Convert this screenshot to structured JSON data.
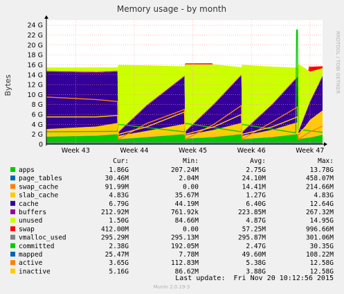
{
  "chart_data": {
    "type": "area",
    "title": "Memory usage - by month",
    "ylabel": "Bytes",
    "watermark": "RRDTOOL / TOBI OETIKER",
    "ylim": [
      0,
      25
    ],
    "yticks": [
      "0",
      "2 G",
      "4 G",
      "6 G",
      "8 G",
      "10 G",
      "12 G",
      "14 G",
      "16 G",
      "18 G",
      "20 G",
      "22 G",
      "24 G"
    ],
    "xticks": [
      "Week 43",
      "Week 44",
      "Week 45",
      "Week 46",
      "Week 47"
    ],
    "x_range_days": [
      0,
      33
    ],
    "week_positions_days": [
      3.5,
      10.5,
      17.5,
      24.5,
      31.5
    ],
    "series_stack": [
      {
        "name": "apps",
        "color": "#00cc00",
        "x": [
          0,
          6,
          8.5,
          8.6,
          12,
          16.5,
          16.6,
          20,
          23.3,
          23.4,
          27,
          30,
          30.1,
          31.5,
          33
        ],
        "values": [
          1.5,
          1.7,
          2.0,
          1.0,
          1.4,
          2.0,
          1.1,
          1.4,
          2.0,
          1.0,
          1.4,
          2.0,
          1.0,
          1.3,
          1.86
        ]
      },
      {
        "name": "page_tables",
        "color": "#0066b3",
        "x": [
          0,
          33
        ],
        "values": [
          0.03,
          0.03
        ]
      },
      {
        "name": "swap_cache",
        "color": "#ff8000",
        "x": [
          0,
          33
        ],
        "values": [
          0.03,
          0.09
        ]
      },
      {
        "name": "slab_cache",
        "color": "#ffcc00",
        "x": [
          0,
          6,
          8.5,
          8.6,
          12,
          16.5,
          16.6,
          20,
          23.3,
          23.4,
          27,
          30,
          30.1,
          31.5,
          33
        ],
        "values": [
          1.5,
          1.8,
          2.2,
          0.6,
          1.2,
          2.0,
          0.6,
          1.4,
          2.2,
          0.6,
          1.4,
          2.3,
          0.6,
          3.5,
          4.83
        ]
      },
      {
        "name": "cache",
        "color": "#330099",
        "x": [
          0,
          6,
          8.5,
          8.6,
          12,
          16.5,
          16.6,
          20,
          23.3,
          23.4,
          27,
          30,
          30.1,
          31.5,
          33
        ],
        "values": [
          11.5,
          10.8,
          10.3,
          0.6,
          5.0,
          9.5,
          0.6,
          5.0,
          9.5,
          0.6,
          5.0,
          9.0,
          0.6,
          3.5,
          6.79
        ]
      },
      {
        "name": "buffers",
        "color": "#990099",
        "x": [
          0,
          33
        ],
        "values": [
          0.2,
          0.21
        ]
      },
      {
        "name": "unused",
        "color": "#ccff00",
        "x": [
          0,
          6,
          8.5,
          8.6,
          12,
          16.5,
          16.6,
          20,
          23.3,
          23.4,
          27,
          30,
          30.1,
          31.5,
          33
        ],
        "values": [
          0.7,
          0.9,
          0.7,
          13.5,
          8.0,
          1.9,
          13.5,
          8.0,
          1.5,
          13.5,
          7.5,
          1.8,
          13.7,
          6.0,
          1.5
        ]
      },
      {
        "name": "swap",
        "color": "#ff0000",
        "x": [
          0,
          16.5,
          16.6,
          19.8,
          19.9,
          31.3,
          31.4,
          33
        ],
        "values": [
          0,
          0,
          0.2,
          0.2,
          0,
          0,
          1.0,
          0.4
        ]
      }
    ],
    "series_lines": [
      {
        "name": "vmalloc_used",
        "color": "#808080",
        "x": [
          0,
          33
        ],
        "values": [
          0.3,
          0.3
        ]
      },
      {
        "name": "committed",
        "color": "#00cc00",
        "x": [
          0,
          8.5,
          8.6,
          16.5,
          16.6,
          23.3,
          23.4,
          29.8,
          29.9,
          30.0,
          30.1,
          33
        ],
        "values": [
          2.5,
          2.6,
          4.0,
          2.5,
          4.2,
          2.5,
          4.0,
          2.3,
          23.0,
          23.0,
          3.0,
          2.4
        ]
      },
      {
        "name": "mapped",
        "color": "#0066b3",
        "x": [
          0,
          33
        ],
        "values": [
          0.1,
          0.1
        ]
      },
      {
        "name": "active",
        "color": "#ff8000",
        "x": [
          0,
          6,
          8.5,
          8.6,
          12,
          16.5,
          16.6,
          20,
          23.3,
          23.4,
          27,
          30,
          30.1,
          31.5,
          33
        ],
        "values": [
          9.5,
          9.0,
          8.6,
          1.0,
          4.2,
          7.0,
          1.0,
          4.0,
          7.8,
          1.0,
          4.5,
          7.5,
          1.0,
          2.5,
          3.65
        ]
      },
      {
        "name": "inactive",
        "color": "#ffcc00",
        "x": [
          0,
          6,
          8.5,
          8.6,
          12,
          16.5,
          16.6,
          20,
          23.3,
          23.4,
          27,
          30,
          30.1,
          31.5,
          33
        ],
        "values": [
          5.5,
          5.5,
          5.8,
          2.0,
          3.5,
          6.5,
          2.0,
          3.5,
          6.0,
          2.0,
          3.5,
          5.5,
          2.0,
          4.5,
          5.16
        ]
      }
    ],
    "legend": {
      "headers": [
        "Cur:",
        "Min:",
        "Avg:",
        "Max:"
      ],
      "rows": [
        {
          "name": "apps",
          "color": "#00cc00",
          "cur": "1.86G",
          "min": "207.24M",
          "avg": "2.75G",
          "max": "13.78G"
        },
        {
          "name": "page_tables",
          "color": "#0066b3",
          "cur": "30.46M",
          "min": "2.04M",
          "avg": "24.10M",
          "max": "458.07M"
        },
        {
          "name": "swap_cache",
          "color": "#ff8000",
          "cur": "91.99M",
          "min": "0.00",
          "avg": "14.41M",
          "max": "214.66M"
        },
        {
          "name": "slab_cache",
          "color": "#ffcc00",
          "cur": "4.83G",
          "min": "35.67M",
          "avg": "1.27G",
          "max": "4.83G"
        },
        {
          "name": "cache",
          "color": "#330099",
          "cur": "6.79G",
          "min": "44.19M",
          "avg": "6.40G",
          "max": "12.64G"
        },
        {
          "name": "buffers",
          "color": "#990099",
          "cur": "212.92M",
          "min": "761.92k",
          "avg": "223.85M",
          "max": "267.32M"
        },
        {
          "name": "unused",
          "color": "#ccff00",
          "cur": "1.50G",
          "min": "84.66M",
          "avg": "4.87G",
          "max": "14.95G"
        },
        {
          "name": "swap",
          "color": "#ff0000",
          "cur": "412.00M",
          "min": "0.00",
          "avg": "57.25M",
          "max": "996.66M"
        },
        {
          "name": "vmalloc_used",
          "color": "#808080",
          "cur": "295.29M",
          "min": "295.13M",
          "avg": "295.87M",
          "max": "301.06M"
        },
        {
          "name": "committed",
          "color": "#00cc00",
          "cur": "2.38G",
          "min": "192.05M",
          "avg": "2.47G",
          "max": "30.35G"
        },
        {
          "name": "mapped",
          "color": "#0066b3",
          "cur": "25.47M",
          "min": "7.78M",
          "avg": "49.60M",
          "max": "108.22M"
        },
        {
          "name": "active",
          "color": "#ff8000",
          "cur": "3.65G",
          "min": "112.83M",
          "avg": "5.38G",
          "max": "12.58G"
        },
        {
          "name": "inactive",
          "color": "#ffcc00",
          "cur": "5.16G",
          "min": "86.62M",
          "avg": "3.88G",
          "max": "12.58G"
        }
      ]
    },
    "last_update": "Last update:  Fri Nov 20 10:12:56 2015",
    "footer": "Munin 2.0.19-3",
    "grid": true,
    "colors": {
      "background": "#f0f0f0",
      "plot": "#ffffff",
      "grid": "#ff9999",
      "axis": "#000000"
    }
  }
}
